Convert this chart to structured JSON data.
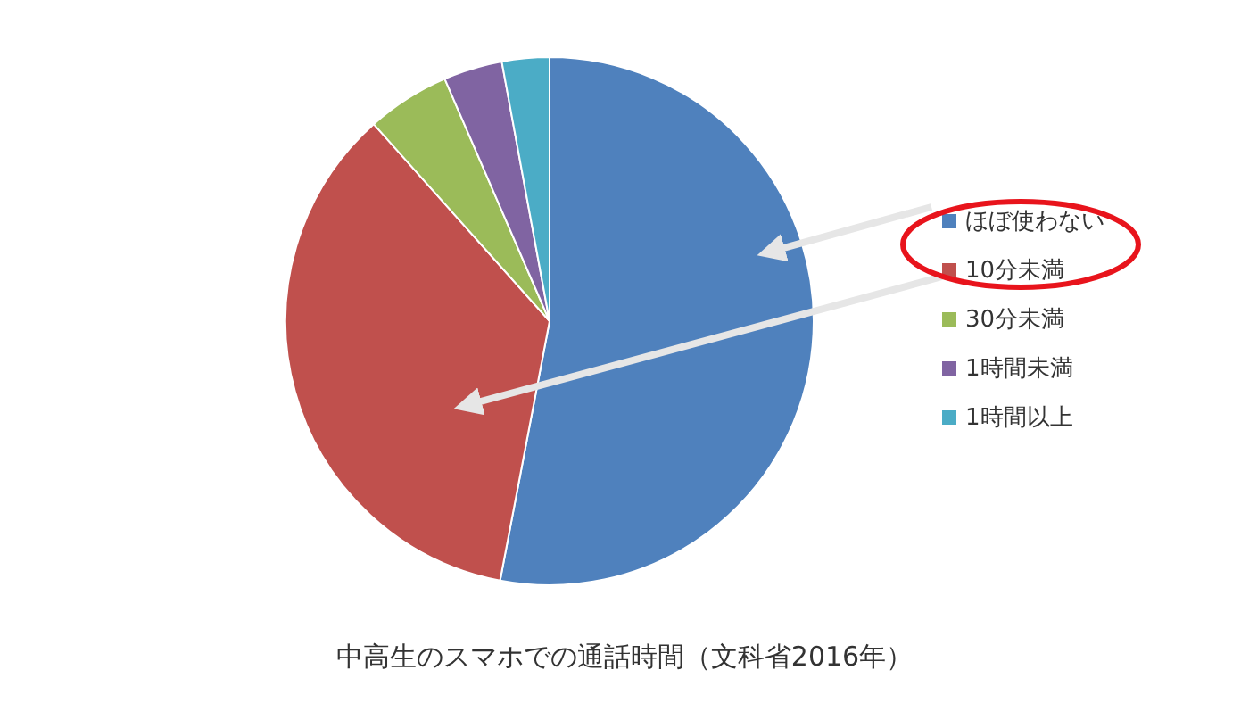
{
  "chart_data": {
    "type": "pie",
    "title": "中高生のスマホでの通話時間（文科省2016年）",
    "categories": [
      "ほぼ使わない",
      "10分未満",
      "30分未満",
      "1時間未満",
      "1時間以上"
    ],
    "values": [
      53,
      35.4,
      5.1,
      3.6,
      2.9
    ],
    "colors": [
      "#4f81bd",
      "#c0504d",
      "#9bbb59",
      "#8064a2",
      "#4bacc6"
    ],
    "legend": "right"
  }
}
